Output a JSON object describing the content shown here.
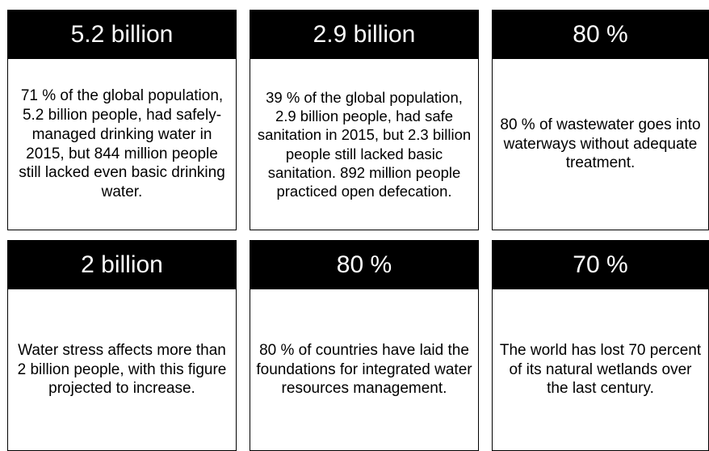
{
  "cards": [
    {
      "stat": "5.2 billion",
      "text": "71 % of the global population, 5.2 billion people, had safely-managed drinking water in 2015, but 844 million people still lacked even basic drinking water."
    },
    {
      "stat": "2.9 billion",
      "text": "39 % of the global population, 2.9 billion people, had safe sanitation in 2015, but 2.3 billion people still lacked basic sanitation. 892 million people practiced open defecation."
    },
    {
      "stat": "80 %",
      "text": "80 % of wastewater goes into waterways without adequate treatment."
    },
    {
      "stat": "2 billion",
      "text": "Water stress affects more than 2 billion people, with this figure projected to increase."
    },
    {
      "stat": "80 %",
      "text": "80 % of countries have laid the foundations for integrated water resources management."
    },
    {
      "stat": "70 %",
      "text": "The world has lost 70 percent of its natural wetlands over the last century."
    }
  ]
}
